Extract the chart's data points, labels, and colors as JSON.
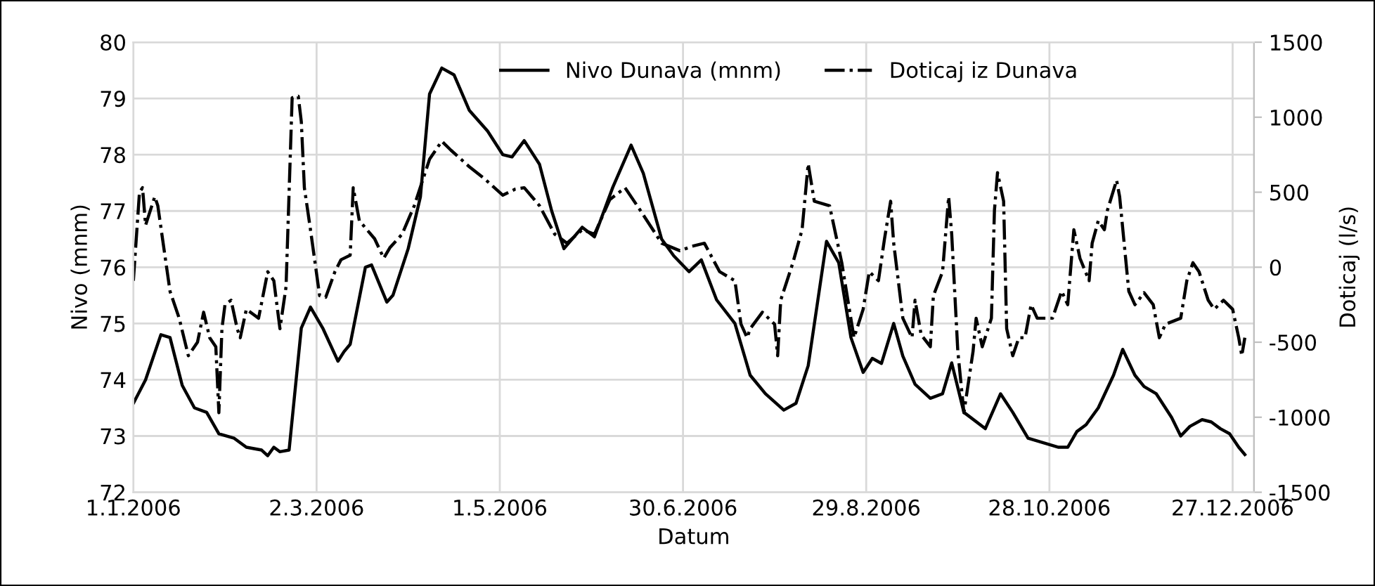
{
  "chart_data": {
    "type": "line",
    "xlabel": "Datum",
    "ylabel": "Nivo (mnm)",
    "y2label": "Doticaj (l/s)",
    "xlim": [
      "2006-01-01",
      "2007-01-03"
    ],
    "xticks": [
      {
        "value": "2006-01-01",
        "label": "1.1.2006"
      },
      {
        "value": "2006-03-02",
        "label": "2.3.2006"
      },
      {
        "value": "2006-05-01",
        "label": "1.5.2006"
      },
      {
        "value": "2006-06-30",
        "label": "30.6.2006"
      },
      {
        "value": "2006-08-29",
        "label": "29.8.2006"
      },
      {
        "value": "2006-10-28",
        "label": "28.10.2006"
      },
      {
        "value": "2006-12-27",
        "label": "27.12.2006"
      }
    ],
    "ylim": [
      72,
      80
    ],
    "yticks": [
      72,
      73,
      74,
      75,
      76,
      77,
      78,
      79,
      80
    ],
    "y2lim": [
      -1500,
      1500
    ],
    "y2ticks": [
      -1500,
      -1000,
      -500,
      0,
      500,
      1000,
      1500
    ],
    "grid": true,
    "legend": "top right",
    "series": [
      {
        "name": "Nivo Dunava (mnm)",
        "color": "#000000",
        "line_style": "solid",
        "x": [
          "2006-01-01",
          "2006-01-05",
          "2006-01-10",
          "2006-01-13",
          "2006-01-17",
          "2006-01-21",
          "2006-01-25",
          "2006-01-29",
          "2006-02-03",
          "2006-02-07",
          "2006-02-12",
          "2006-02-14",
          "2006-02-16",
          "2006-02-18",
          "2006-02-21",
          "2006-02-25",
          "2006-02-28",
          "2006-03-04",
          "2006-03-09",
          "2006-03-11",
          "2006-03-13",
          "2006-03-18",
          "2006-03-20",
          "2006-03-25",
          "2006-03-27",
          "2006-04-01",
          "2006-04-05",
          "2006-04-08",
          "2006-04-12",
          "2006-04-16",
          "2006-04-21",
          "2006-04-27",
          "2006-05-02",
          "2006-05-05",
          "2006-05-09",
          "2006-05-14",
          "2006-05-18",
          "2006-05-22",
          "2006-05-28",
          "2006-06-01",
          "2006-06-07",
          "2006-06-13",
          "2006-06-17",
          "2006-06-23",
          "2006-06-27",
          "2006-07-02",
          "2006-07-06",
          "2006-07-11",
          "2006-07-17",
          "2006-07-22",
          "2006-07-27",
          "2006-08-02",
          "2006-08-06",
          "2006-08-10",
          "2006-08-16",
          "2006-08-20",
          "2006-08-24",
          "2006-08-28",
          "2006-08-31",
          "2006-09-03",
          "2006-09-07",
          "2006-09-10",
          "2006-09-14",
          "2006-09-19",
          "2006-09-23",
          "2006-09-26",
          "2006-09-30",
          "2006-10-07",
          "2006-10-12",
          "2006-10-16",
          "2006-10-21",
          "2006-10-26",
          "2006-10-31",
          "2006-11-03",
          "2006-11-06",
          "2006-11-09",
          "2006-11-13",
          "2006-11-18",
          "2006-11-21",
          "2006-11-25",
          "2006-11-28",
          "2006-12-02",
          "2006-12-07",
          "2006-12-10",
          "2006-12-13",
          "2006-12-17",
          "2006-12-20",
          "2006-12-23",
          "2006-12-26",
          "2006-12-29",
          "2006-12-31"
        ],
        "values": [
          73.58,
          74.0,
          74.8,
          74.75,
          73.9,
          73.5,
          73.42,
          73.04,
          72.96,
          72.8,
          72.75,
          72.65,
          72.8,
          72.72,
          72.75,
          74.92,
          75.29,
          74.92,
          74.33,
          74.5,
          74.63,
          76.0,
          76.04,
          75.38,
          75.5,
          76.33,
          77.25,
          79.08,
          79.54,
          79.42,
          78.79,
          78.42,
          78.0,
          77.96,
          78.25,
          77.83,
          77.0,
          76.33,
          76.71,
          76.54,
          77.42,
          78.17,
          77.67,
          76.5,
          76.2,
          75.92,
          76.13,
          75.42,
          75.0,
          74.08,
          73.75,
          73.46,
          73.58,
          74.25,
          76.46,
          76.08,
          74.75,
          74.13,
          74.38,
          74.29,
          75.0,
          74.42,
          73.92,
          73.67,
          73.75,
          74.3,
          73.42,
          73.13,
          73.75,
          73.42,
          72.96,
          72.88,
          72.8,
          72.8,
          73.08,
          73.2,
          73.5,
          74.08,
          74.54,
          74.08,
          73.88,
          73.75,
          73.33,
          73.0,
          73.17,
          73.29,
          73.25,
          73.13,
          73.04,
          72.8,
          72.67
        ]
      },
      {
        "name": "Doticaj iz Dunava",
        "color": "#000000",
        "line_style": "dashdot",
        "axis": "y2",
        "x": [
          "2006-01-01",
          "2006-01-03",
          "2006-01-04",
          "2006-01-05",
          "2006-01-08",
          "2006-01-09",
          "2006-01-13",
          "2006-01-16",
          "2006-01-19",
          "2006-01-22",
          "2006-01-24",
          "2006-01-26",
          "2006-01-28",
          "2006-01-29",
          "2006-01-30",
          "2006-01-31",
          "2006-02-02",
          "2006-02-04",
          "2006-02-05",
          "2006-02-07",
          "2006-02-09",
          "2006-02-11",
          "2006-02-14",
          "2006-02-16",
          "2006-02-18",
          "2006-02-20",
          "2006-02-22",
          "2006-02-24",
          "2006-02-25",
          "2006-02-26",
          "2006-02-28",
          "2006-03-03",
          "2006-03-05",
          "2006-03-08",
          "2006-03-10",
          "2006-03-13",
          "2006-03-14",
          "2006-03-16",
          "2006-03-21",
          "2006-03-24",
          "2006-03-26",
          "2006-03-30",
          "2006-04-03",
          "2006-04-08",
          "2006-04-12",
          "2006-04-15",
          "2006-04-21",
          "2006-04-26",
          "2006-05-02",
          "2006-05-06",
          "2006-05-09",
          "2006-05-14",
          "2006-05-19",
          "2006-05-23",
          "2006-05-28",
          "2006-06-01",
          "2006-06-06",
          "2006-06-11",
          "2006-06-16",
          "2006-06-23",
          "2006-06-29",
          "2006-07-03",
          "2006-07-07",
          "2006-07-12",
          "2006-07-17",
          "2006-07-19",
          "2006-07-21",
          "2006-07-22",
          "2006-07-26",
          "2006-07-30",
          "2006-07-31",
          "2006-08-01",
          "2006-08-05",
          "2006-08-08",
          "2006-08-10",
          "2006-08-12",
          "2006-08-17",
          "2006-08-21",
          "2006-08-25",
          "2006-08-28",
          "2006-08-30",
          "2006-09-02",
          "2006-09-04",
          "2006-09-06",
          "2006-09-07",
          "2006-09-10",
          "2006-09-13",
          "2006-09-14",
          "2006-09-16",
          "2006-09-19",
          "2006-09-20",
          "2006-09-23",
          "2006-09-25",
          "2006-09-26",
          "2006-09-28",
          "2006-09-30",
          "2006-10-03",
          "2006-10-04",
          "2006-10-06",
          "2006-10-09",
          "2006-10-10",
          "2006-10-11",
          "2006-10-13",
          "2006-10-14",
          "2006-10-16",
          "2006-10-18",
          "2006-10-20",
          "2006-10-22",
          "2006-10-24",
          "2006-10-27",
          "2006-10-29",
          "2006-11-01",
          "2006-11-03",
          "2006-11-05",
          "2006-11-07",
          "2006-11-10",
          "2006-11-11",
          "2006-11-13",
          "2006-11-15",
          "2006-11-16",
          "2006-11-19",
          "2006-11-20",
          "2006-11-23",
          "2006-11-25",
          "2006-11-28",
          "2006-12-01",
          "2006-12-03",
          "2006-12-05",
          "2006-12-10",
          "2006-12-12",
          "2006-12-14",
          "2006-12-16",
          "2006-12-19",
          "2006-12-21",
          "2006-12-24",
          "2006-12-27",
          "2006-12-29",
          "2006-12-30",
          "2006-12-31"
        ],
        "values": [
          -90,
          500,
          530,
          280,
          470,
          410,
          -160,
          -340,
          -590,
          -500,
          -300,
          -470,
          -530,
          -970,
          -410,
          -250,
          -220,
          -410,
          -470,
          -280,
          -310,
          -340,
          -30,
          -90,
          -410,
          -130,
          1130,
          1140,
          970,
          530,
          250,
          -190,
          -200,
          -30,
          50,
          80,
          530,
          310,
          190,
          60,
          130,
          220,
          410,
          720,
          840,
          780,
          670,
          590,
          480,
          520,
          530,
          410,
          220,
          160,
          250,
          220,
          450,
          530,
          380,
          160,
          110,
          140,
          160,
          -30,
          -90,
          -380,
          -470,
          -410,
          -300,
          -380,
          -590,
          -220,
          30,
          250,
          690,
          440,
          410,
          30,
          -470,
          -280,
          -30,
          -90,
          190,
          440,
          160,
          -340,
          -470,
          -220,
          -450,
          -530,
          -190,
          -30,
          470,
          220,
          -560,
          -970,
          -560,
          -340,
          -530,
          -340,
          380,
          630,
          440,
          -410,
          -590,
          -470,
          -470,
          -250,
          -340,
          -340,
          -340,
          -160,
          -250,
          250,
          60,
          -90,
          160,
          310,
          250,
          380,
          580,
          470,
          -160,
          -250,
          -170,
          -250,
          -470,
          -380,
          -340,
          -90,
          30,
          -30,
          -220,
          -280,
          -220,
          -280,
          -470,
          -590,
          -470
        ]
      }
    ]
  }
}
